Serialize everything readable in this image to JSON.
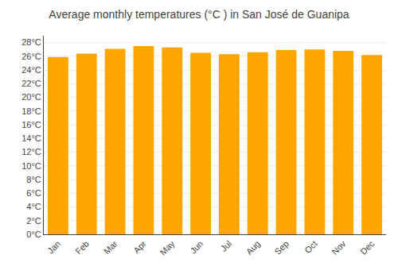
{
  "chart_data": {
    "type": "bar",
    "title": "Average monthly temperatures (°C ) in San José de Guanipa",
    "categories": [
      "Jan",
      "Feb",
      "Mar",
      "Apr",
      "May",
      "Jun",
      "Jul",
      "Aug",
      "Sep",
      "Oct",
      "Nov",
      "Dec"
    ],
    "values": [
      25.9,
      26.4,
      27.1,
      27.5,
      27.3,
      26.5,
      26.3,
      26.6,
      26.9,
      27.0,
      26.8,
      26.2
    ],
    "color": "#FFA500",
    "ylim": [
      0,
      29
    ],
    "yticks": [
      {
        "value": 0,
        "label": "0°C"
      },
      {
        "value": 2,
        "label": "2°C"
      },
      {
        "value": 4,
        "label": "4°C"
      },
      {
        "value": 6,
        "label": "6°C"
      },
      {
        "value": 8,
        "label": "8°C"
      },
      {
        "value": 10,
        "label": "10°C"
      },
      {
        "value": 12,
        "label": "12°C"
      },
      {
        "value": 14,
        "label": "14°C"
      },
      {
        "value": 16,
        "label": "16°C"
      },
      {
        "value": 18,
        "label": "18°C"
      },
      {
        "value": 20,
        "label": "20°C"
      },
      {
        "value": 22,
        "label": "22°C"
      },
      {
        "value": 24,
        "label": "24°C"
      },
      {
        "value": 26,
        "label": "26°C"
      },
      {
        "value": 28,
        "label": "28°C"
      }
    ],
    "grid": true
  }
}
